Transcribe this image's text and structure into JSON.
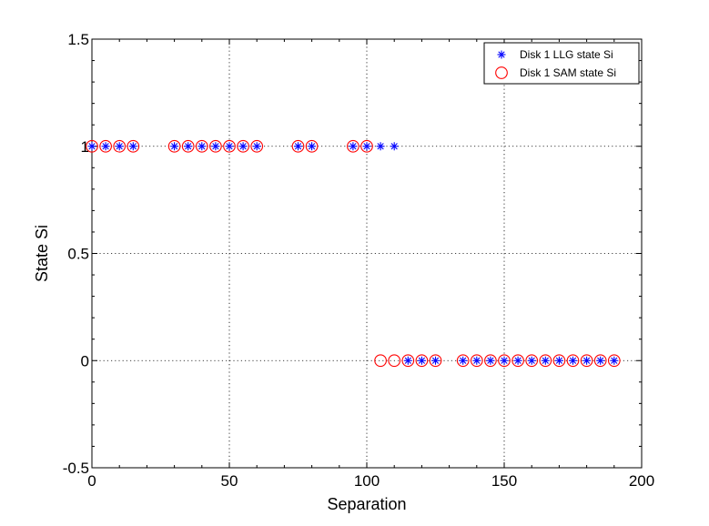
{
  "chart_data": {
    "type": "scatter",
    "title": "",
    "xlabel": "Separation",
    "ylabel": "State Si",
    "xlim": [
      0,
      200
    ],
    "ylim": [
      -0.5,
      1.5
    ],
    "xticks": [
      0,
      50,
      100,
      150,
      200
    ],
    "yticks": [
      -0.5,
      0,
      0.5,
      1,
      1.5
    ],
    "xtick_labels": [
      "0",
      "50",
      "100",
      "150",
      "200"
    ],
    "ytick_labels": [
      "-0.5",
      "0",
      "0.5",
      "1",
      "1.5"
    ],
    "grid": true,
    "legend_position": "top-right",
    "series": [
      {
        "name": "Disk 1 LLG state Si",
        "marker": "asterisk",
        "color": "#0000ff",
        "x": [
          0,
          5,
          10,
          15,
          30,
          35,
          40,
          45,
          50,
          55,
          60,
          75,
          80,
          95,
          100,
          105,
          110,
          115,
          120,
          125,
          135,
          140,
          145,
          150,
          155,
          160,
          165,
          170,
          175,
          180,
          185,
          190
        ],
        "y": [
          1,
          1,
          1,
          1,
          1,
          1,
          1,
          1,
          1,
          1,
          1,
          1,
          1,
          1,
          1,
          1,
          1,
          0,
          0,
          0,
          0,
          0,
          0,
          0,
          0,
          0,
          0,
          0,
          0,
          0,
          0,
          0
        ]
      },
      {
        "name": "Disk 1 SAM state Si",
        "marker": "circle",
        "color": "#ff0000",
        "x": [
          0,
          5,
          10,
          15,
          30,
          35,
          40,
          45,
          50,
          55,
          60,
          75,
          80,
          95,
          100,
          105,
          110,
          115,
          120,
          125,
          135,
          140,
          145,
          150,
          155,
          160,
          165,
          170,
          175,
          180,
          185,
          190
        ],
        "y": [
          1,
          1,
          1,
          1,
          1,
          1,
          1,
          1,
          1,
          1,
          1,
          1,
          1,
          1,
          1,
          0,
          0,
          0,
          0,
          0,
          0,
          0,
          0,
          0,
          0,
          0,
          0,
          0,
          0,
          0,
          0,
          0
        ]
      }
    ]
  }
}
